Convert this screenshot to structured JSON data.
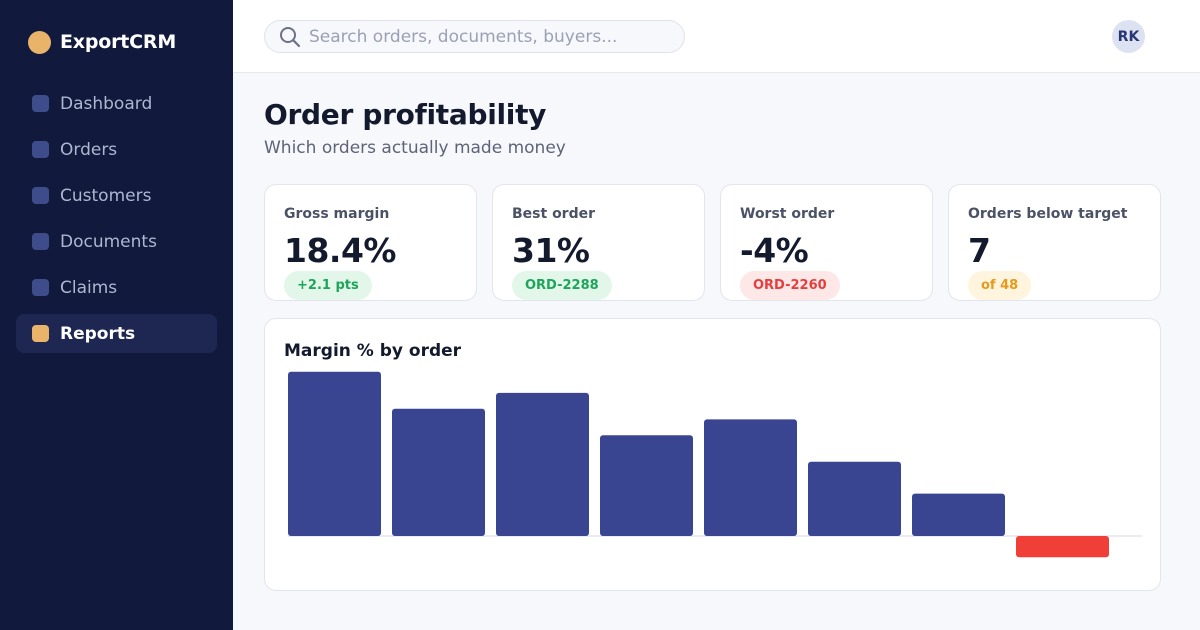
{
  "brand": {
    "name": "ExportCRM",
    "logo_color": "#e9b46a"
  },
  "sidebar": {
    "items": [
      {
        "label": "Dashboard",
        "active": false
      },
      {
        "label": "Orders",
        "active": false
      },
      {
        "label": "Customers",
        "active": false
      },
      {
        "label": "Documents",
        "active": false
      },
      {
        "label": "Claims",
        "active": false
      },
      {
        "label": "Reports",
        "active": true
      }
    ]
  },
  "header": {
    "search": {
      "placeholder": "Search orders, documents, buyers...",
      "value": ""
    },
    "user_initials": "RK"
  },
  "page": {
    "title": "Order profitability",
    "subtitle": "Which orders actually made money"
  },
  "kpis": [
    {
      "label": "Gross margin",
      "value": "18.4%",
      "badge": "+2.1 pts",
      "tone": "green"
    },
    {
      "label": "Best order",
      "value": "31%",
      "badge": "ORD-2288",
      "tone": "green"
    },
    {
      "label": "Worst order",
      "value": "-4%",
      "badge": "ORD-2260",
      "tone": "red"
    },
    {
      "label": "Orders below target",
      "value": "7",
      "badge": "of 48",
      "tone": "amber"
    }
  ],
  "chart_data": {
    "type": "bar",
    "title": "Margin % by order",
    "xlabel": "",
    "ylabel": "",
    "categories": [
      "",
      "",
      "",
      "",
      "",
      "",
      "",
      ""
    ],
    "values": [
      31,
      24,
      27,
      19,
      22,
      14,
      8,
      -4
    ],
    "ylim": [
      -4,
      31
    ],
    "grid": false,
    "colors": {
      "positive": "#3a4592",
      "negative": "#ef3f37",
      "baseline": "#e3e6ee"
    }
  },
  "colors": {
    "sidebar_bg": "#111a3c",
    "accent": "#e9b46a",
    "positive": "#1fa55b",
    "negative": "#e53e3e",
    "warning": "#e49a1c"
  }
}
